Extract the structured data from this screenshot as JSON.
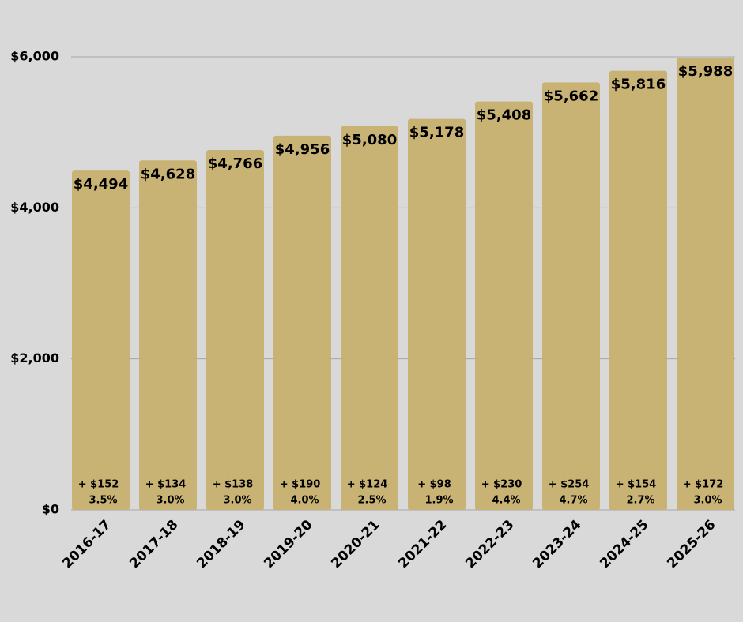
{
  "chart_data": {
    "type": "bar",
    "categories": [
      "2016-17",
      "2017-18",
      "2018-19",
      "2019-20",
      "2020-21",
      "2021-22",
      "2022-23",
      "2023-24",
      "2024-25",
      "2025-26"
    ],
    "values": [
      4494,
      4628,
      4766,
      4956,
      5080,
      5178,
      5408,
      5662,
      5816,
      5988
    ],
    "value_labels": [
      "$4,494",
      "$4,628",
      "$4,766",
      "$4,956",
      "$5,080",
      "$5,178",
      "$5,408",
      "$5,662",
      "$5,816",
      "$5,988"
    ],
    "annotations": [
      {
        "change": "+ $152",
        "percent": "3.5%"
      },
      {
        "change": "+ $134",
        "percent": "3.0%"
      },
      {
        "change": "+ $138",
        "percent": "3.0%"
      },
      {
        "change": "+ $190",
        "percent": "4.0%"
      },
      {
        "change": "+ $124",
        "percent": "2.5%"
      },
      {
        "change": "+ $98",
        "percent": "1.9%"
      },
      {
        "change": "+ $230",
        "percent": "4.4%"
      },
      {
        "change": "+ $254",
        "percent": "4.7%"
      },
      {
        "change": "+ $154",
        "percent": "2.7%"
      },
      {
        "change": "+ $172",
        "percent": "3.0%"
      }
    ],
    "color": "#c9b374",
    "ylim": [
      0,
      6000
    ],
    "yticks": [
      {
        "value": 0,
        "label": "$0"
      },
      {
        "value": 2000,
        "label": "$2,000"
      },
      {
        "value": 4000,
        "label": "$4,000"
      },
      {
        "value": 6000,
        "label": "$6,000"
      }
    ],
    "grid": true
  }
}
